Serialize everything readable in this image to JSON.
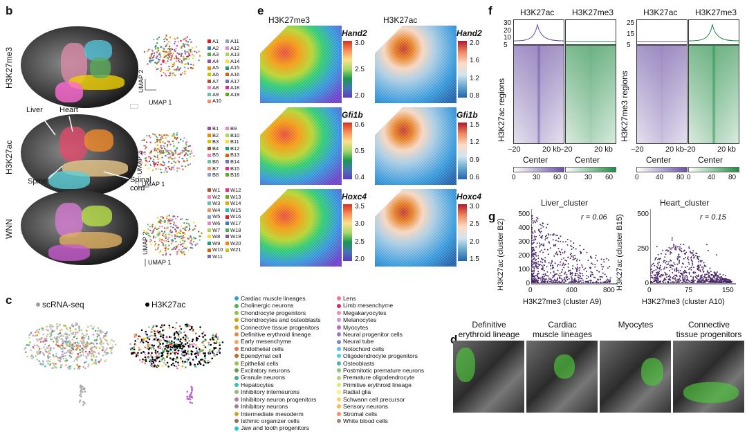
{
  "panel_b": {
    "label": "b",
    "rows": [
      {
        "name": "H3K27me3",
        "clusters": [
          "A1",
          "A2",
          "A3",
          "A4",
          "A5",
          "A6",
          "A7",
          "A8",
          "A9",
          "A10",
          "A11",
          "A12",
          "A13",
          "A14",
          "A15",
          "A16",
          "A17",
          "A18",
          "A19"
        ]
      },
      {
        "name": "H3K27ac",
        "clusters": [
          "B1",
          "B2",
          "B3",
          "B4",
          "B5",
          "B6",
          "B7",
          "B8",
          "B9",
          "B10",
          "B11",
          "B12",
          "B13",
          "B14",
          "B15",
          "B16"
        ]
      },
      {
        "name": "WNN",
        "clusters": [
          "W1",
          "W2",
          "W3",
          "W4",
          "W5",
          "W6",
          "W7",
          "W8",
          "W9",
          "W10",
          "W11",
          "W12",
          "W13",
          "W14",
          "W15",
          "W16",
          "W17",
          "W18",
          "W19",
          "W20",
          "W21"
        ]
      }
    ],
    "umap1": "UMAP 1",
    "umap2": "UMAP 2",
    "annotations": {
      "liver": "Liver",
      "heart": "Heart",
      "spine": "Spine",
      "spinal_cord": "Spinal\ncord"
    }
  },
  "panel_c": {
    "label": "c",
    "title_left": "scRNA-seq",
    "title_right": "H3K27ac",
    "legend_col1": [
      {
        "name": "Cardiac muscle lineages",
        "color": "#2a9fd6"
      },
      {
        "name": "Cholinergic neurons",
        "color": "#4caf50"
      },
      {
        "name": "Chondrocyte progenitors",
        "color": "#8bc34a"
      },
      {
        "name": "Chondrocytes and osteoblasts",
        "color": "#c6a600"
      },
      {
        "name": "Connective tissue progenitors",
        "color": "#d4a017"
      },
      {
        "name": "Definitive erythroid lineage",
        "color": "#e88b4a"
      },
      {
        "name": "Early mesenchyme",
        "color": "#f4a261"
      },
      {
        "name": "Endothelial cells",
        "color": "#e76f51"
      },
      {
        "name": "Ependymal cell",
        "color": "#bc6c25"
      },
      {
        "name": "Epithelial cells",
        "color": "#a1c349"
      },
      {
        "name": "Excitatory neurons",
        "color": "#6a994e"
      },
      {
        "name": "Granule neurons",
        "color": "#43aa8b"
      },
      {
        "name": "Hepatocytes",
        "color": "#2ec4b6"
      },
      {
        "name": "Inhibitory interneurons",
        "color": "#90be6d"
      },
      {
        "name": "Inhibitory neuron progenitors",
        "color": "#b5838d"
      },
      {
        "name": "Inhibitory neurons",
        "color": "#9d8189"
      },
      {
        "name": "Intermediate mesoderm",
        "color": "#c9a227"
      },
      {
        "name": "Isthmic organizer cells",
        "color": "#8d6e63"
      },
      {
        "name": "Jaw and tooth progenitors",
        "color": "#26c6da"
      }
    ],
    "legend_col2": [
      {
        "name": "Lens",
        "color": "#ff6f91"
      },
      {
        "name": "Limb mesenchyme",
        "color": "#e91e63"
      },
      {
        "name": "Megakaryocytes",
        "color": "#f48fb1"
      },
      {
        "name": "Melanocytes",
        "color": "#ce93d8"
      },
      {
        "name": "Myocytes",
        "color": "#ba68c8"
      },
      {
        "name": "Neural progenitor cells",
        "color": "#9575cd"
      },
      {
        "name": "Neural tube",
        "color": "#7986cb"
      },
      {
        "name": "Notochord cells",
        "color": "#64b5f6"
      },
      {
        "name": "Oligodendrocyte progenitors",
        "color": "#4dd0e1"
      },
      {
        "name": "Osteoblasts",
        "color": "#4db6ac"
      },
      {
        "name": "Postmitotic premature neurons",
        "color": "#81c784"
      },
      {
        "name": "Premature oligodendrocyte",
        "color": "#aed581"
      },
      {
        "name": "Primitive erythroid lineage",
        "color": "#dce775"
      },
      {
        "name": "Radial glia",
        "color": "#fff176"
      },
      {
        "name": "Schwann cell precursor",
        "color": "#ffd54f"
      },
      {
        "name": "Sensory neurons",
        "color": "#ffb74d"
      },
      {
        "name": "Stromal cells",
        "color": "#ff8a65"
      },
      {
        "name": "White blood cells",
        "color": "#a1887f"
      }
    ]
  },
  "panel_d": {
    "label": "d",
    "images": [
      "Definitive\nerythroid lineage",
      "Cardiac\nmuscle lineages",
      "Myocytes",
      "Connective\ntissue progenitors"
    ]
  },
  "panel_e": {
    "label": "e",
    "col_titles": [
      "H3K27me3",
      "H3K27ac"
    ],
    "maps": [
      {
        "gene": "Hand2",
        "mark": "H3K27me3",
        "ticks": [
          "3.0",
          "2.5",
          "2.0"
        ]
      },
      {
        "gene": "Hand2",
        "mark": "H3K27ac",
        "ticks": [
          "2.0",
          "1.6",
          "1.2",
          "0.8"
        ]
      },
      {
        "gene": "Gfi1b",
        "mark": "H3K27me3",
        "ticks": [
          "0.6",
          "0.5",
          "0.4"
        ]
      },
      {
        "gene": "Gfi1b",
        "mark": "H3K27ac",
        "ticks": [
          "1.5",
          "1.2",
          "0.9",
          "0.6"
        ]
      },
      {
        "gene": "Hoxc4",
        "mark": "H3K27me3",
        "ticks": [
          "3.5",
          "3.0",
          "2.5",
          "2.0"
        ]
      },
      {
        "gene": "Hoxc4",
        "mark": "H3K27ac",
        "ticks": [
          "3.0",
          "2.5",
          "2.0",
          "1.5"
        ]
      }
    ]
  },
  "panel_f": {
    "label": "f",
    "groups": [
      {
        "region_label": "H3K27ac regions",
        "cols": [
          "H3K27ac",
          "H3K27me3"
        ],
        "yticks": [
          "30",
          "20",
          "10",
          "5"
        ],
        "cbar_ticks": [
          "0",
          "30",
          "60"
        ]
      },
      {
        "region_label": "H3K27me3 regions",
        "cols": [
          "H3K27ac",
          "H3K27me3"
        ],
        "yticks": [
          "25",
          "15",
          "5"
        ],
        "cbar_ticks": [
          "0",
          "40",
          "80"
        ]
      }
    ],
    "xticks": [
      "−20",
      "20 kb"
    ],
    "center": "Center"
  },
  "panel_g": {
    "label": "g",
    "plots": [
      {
        "title": "Liver_cluster",
        "r": "r = 0.06",
        "ylabel": "H3K27ac (cluster B2)",
        "xlabel": "H3K27me3 (cluster A9)",
        "xticks": [
          "0",
          "400",
          "800"
        ],
        "yticks": [
          "0",
          "100",
          "200",
          "300",
          "400",
          "500"
        ]
      },
      {
        "title": "Heart_cluster",
        "r": "r = 0.15",
        "ylabel": "H3K27ac (cluster B15)",
        "xlabel": "H3K27me3 (cluster A10)",
        "xticks": [
          "0",
          "75",
          "150"
        ],
        "yticks": [
          "0",
          "250",
          "500"
        ]
      }
    ]
  },
  "colors": {
    "h3k27ac": "#6a51a3",
    "h3k27me3": "#238b45",
    "scatter": "#4b2a6b"
  }
}
